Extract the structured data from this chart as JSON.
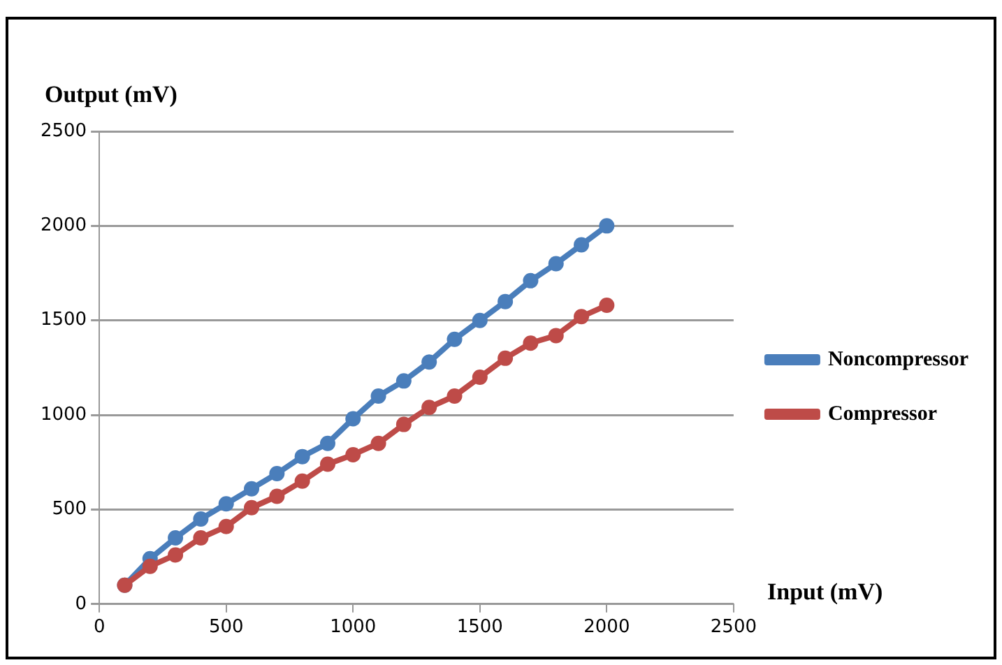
{
  "chart_data": {
    "type": "line",
    "xlabel": "Input (mV)",
    "ylabel": "Output (mV)",
    "x": [
      100,
      200,
      300,
      400,
      500,
      600,
      700,
      800,
      900,
      1000,
      1100,
      1200,
      1300,
      1400,
      1500,
      1600,
      1700,
      1800,
      1900,
      2000
    ],
    "series": [
      {
        "name": "Noncompressor",
        "color": "#4a7ebb",
        "values": [
          100,
          240,
          350,
          450,
          530,
          610,
          690,
          780,
          850,
          980,
          1100,
          1180,
          1280,
          1400,
          1500,
          1600,
          1710,
          1800,
          1900,
          2000
        ]
      },
      {
        "name": "Compressor",
        "color": "#be4b48",
        "values": [
          100,
          200,
          260,
          350,
          410,
          510,
          570,
          650,
          740,
          790,
          850,
          950,
          1040,
          1100,
          1200,
          1300,
          1380,
          1420,
          1520,
          1580
        ]
      }
    ],
    "xlim": [
      0,
      2500
    ],
    "xticks": [
      0,
      500,
      1000,
      1500,
      2000,
      2500
    ],
    "ylim": [
      0,
      2500
    ],
    "yticks": [
      0,
      500,
      1000,
      1500,
      2000,
      2500
    ],
    "grid": "y",
    "legend": "right",
    "marker": "circle",
    "line_style": "solid"
  }
}
